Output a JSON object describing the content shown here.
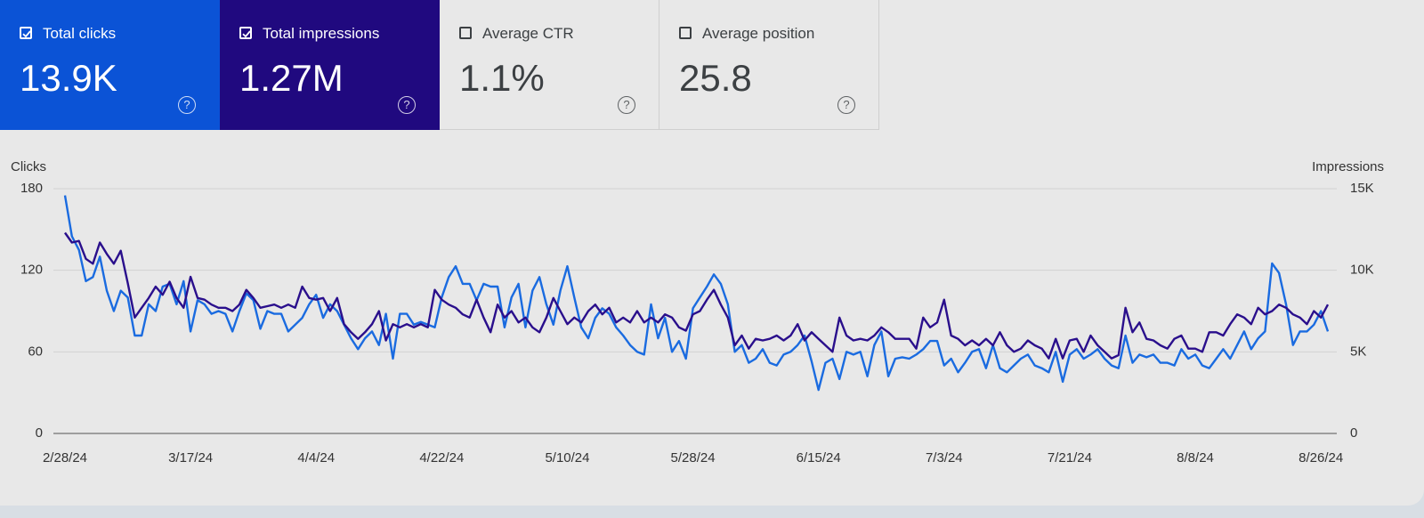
{
  "cards": [
    {
      "label": "Total clicks",
      "value": "13.9K",
      "checked": true,
      "color": "#0b53d6"
    },
    {
      "label": "Total impressions",
      "value": "1.27M",
      "checked": true,
      "color": "#20097f"
    },
    {
      "label": "Average CTR",
      "value": "1.1%",
      "checked": false,
      "color": "#e8e8e8"
    },
    {
      "label": "Average position",
      "value": "25.8",
      "checked": false,
      "color": "#e8e8e8"
    }
  ],
  "chart_data": {
    "type": "line",
    "ylabel": "Clicks",
    "y2label": "Impressions",
    "ylim": [
      0,
      180
    ],
    "yticks": [
      0,
      60,
      120,
      180
    ],
    "y2lim": [
      0,
      15000
    ],
    "y2ticks": [
      {
        "value": 0,
        "label": "0"
      },
      {
        "value": 5000,
        "label": "5K"
      },
      {
        "value": 10000,
        "label": "10K"
      },
      {
        "value": 15000,
        "label": "15K"
      }
    ],
    "grid": true,
    "categories": [
      "2/28/24",
      null,
      null,
      null,
      null,
      null,
      null,
      null,
      null,
      null,
      null,
      null,
      null,
      null,
      null,
      null,
      null,
      null,
      "3/17/24",
      null,
      null,
      null,
      null,
      null,
      null,
      null,
      null,
      null,
      null,
      null,
      null,
      null,
      null,
      null,
      null,
      null,
      "4/4/24",
      null,
      null,
      null,
      null,
      null,
      null,
      null,
      null,
      null,
      null,
      null,
      null,
      null,
      null,
      null,
      null,
      null,
      "4/22/24",
      null,
      null,
      null,
      null,
      null,
      null,
      null,
      null,
      null,
      null,
      null,
      null,
      null,
      null,
      null,
      null,
      null,
      "5/10/24",
      null,
      null,
      null,
      null,
      null,
      null,
      null,
      null,
      null,
      null,
      null,
      null,
      null,
      null,
      null,
      null,
      null,
      "5/28/24",
      null,
      null,
      null,
      null,
      null,
      null,
      null,
      null,
      null,
      null,
      null,
      null,
      null,
      null,
      null,
      null,
      null,
      "6/15/24",
      null,
      null,
      null,
      null,
      null,
      null,
      null,
      null,
      null,
      null,
      null,
      null,
      null,
      null,
      null,
      null,
      null,
      "7/3/24",
      null,
      null,
      null,
      null,
      null,
      null,
      null,
      null,
      null,
      null,
      null,
      null,
      null,
      null,
      null,
      null,
      null,
      "7/21/24",
      null,
      null,
      null,
      null,
      null,
      null,
      null,
      null,
      null,
      null,
      null,
      null,
      null,
      null,
      null,
      null,
      null,
      "8/8/24",
      null,
      null,
      null,
      null,
      null,
      null,
      null,
      null,
      null,
      null,
      null,
      null,
      null,
      null,
      null,
      null,
      null,
      "8/26/24",
      null
    ],
    "series": [
      {
        "name": "Total clicks",
        "color": "#1a6be0",
        "values": [
          175,
          145,
          135,
          112,
          115,
          130,
          105,
          90,
          105,
          100,
          72,
          72,
          95,
          90,
          108,
          110,
          95,
          112,
          75,
          98,
          95,
          88,
          90,
          88,
          75,
          90,
          103,
          98,
          77,
          90,
          88,
          88,
          75,
          80,
          85,
          95,
          102,
          85,
          95,
          90,
          80,
          70,
          62,
          70,
          75,
          65,
          88,
          55,
          88,
          88,
          80,
          82,
          80,
          78,
          100,
          115,
          123,
          110,
          110,
          98,
          110,
          108,
          108,
          78,
          100,
          110,
          78,
          105,
          115,
          95,
          80,
          105,
          123,
          100,
          78,
          70,
          85,
          92,
          88,
          78,
          72,
          65,
          60,
          58,
          95,
          70,
          85,
          60,
          68,
          55,
          92,
          100,
          108,
          117,
          110,
          95,
          60,
          65,
          52,
          55,
          62,
          52,
          50,
          58,
          60,
          65,
          72,
          53,
          32,
          52,
          55,
          40,
          60,
          58,
          60,
          42,
          65,
          75,
          42,
          55,
          56,
          55,
          58,
          62,
          68,
          68,
          50,
          55,
          45,
          52,
          60,
          62,
          48,
          65,
          48,
          45,
          50,
          55,
          58,
          50,
          48,
          45,
          60,
          38,
          58,
          62,
          55,
          58,
          62,
          55,
          50,
          48,
          72,
          52,
          58,
          56,
          58,
          52,
          52,
          50,
          62,
          55,
          58,
          50,
          48,
          55,
          62,
          55,
          65,
          75,
          62,
          70,
          75,
          125,
          118,
          95,
          65,
          75,
          75,
          80,
          90,
          75
        ]
      },
      {
        "name": "Total impressions",
        "color": "#2a0f8c",
        "axis": "y2",
        "values": [
          12300,
          11700,
          11800,
          10700,
          10400,
          11700,
          11000,
          10400,
          11200,
          9200,
          7100,
          7700,
          8300,
          9000,
          8500,
          9300,
          8300,
          7700,
          9600,
          8300,
          8200,
          7900,
          7700,
          7700,
          7500,
          7900,
          8800,
          8300,
          7700,
          7800,
          7900,
          7700,
          7900,
          7700,
          9000,
          8300,
          8200,
          8300,
          7500,
          8300,
          6700,
          6200,
          5800,
          6200,
          6700,
          7500,
          5700,
          6700,
          6500,
          6700,
          6500,
          6700,
          6500,
          8800,
          8200,
          7900,
          7700,
          7300,
          7100,
          8200,
          7100,
          6200,
          7900,
          7100,
          7500,
          6800,
          7100,
          6500,
          6200,
          7100,
          8300,
          7500,
          6700,
          7100,
          6800,
          7500,
          7900,
          7300,
          7700,
          6800,
          7100,
          6800,
          7500,
          6800,
          7100,
          6800,
          7300,
          7100,
          6500,
          6300,
          7300,
          7500,
          8200,
          8800,
          7900,
          7100,
          5400,
          6000,
          5200,
          5800,
          5700,
          5800,
          6000,
          5700,
          6000,
          6700,
          5700,
          6200,
          5800,
          5400,
          5000,
          7100,
          6000,
          5700,
          5800,
          5700,
          6000,
          6500,
          6200,
          5800,
          5800,
          5800,
          5200,
          7100,
          6500,
          6800,
          8200,
          6000,
          5800,
          5400,
          5700,
          5400,
          5800,
          5400,
          6200,
          5400,
          5000,
          5200,
          5700,
          5400,
          5200,
          4600,
          5800,
          4600,
          5700,
          5800,
          5000,
          6000,
          5400,
          5000,
          4600,
          4800,
          7700,
          6200,
          6800,
          5800,
          5700,
          5400,
          5200,
          5800,
          6000,
          5200,
          5200,
          5000,
          6200,
          6200,
          6000,
          6700,
          7300,
          7100,
          6700,
          7700,
          7300,
          7500,
          7900,
          7700,
          7300,
          7100,
          6700,
          7500,
          7100,
          7900
        ]
      }
    ]
  }
}
